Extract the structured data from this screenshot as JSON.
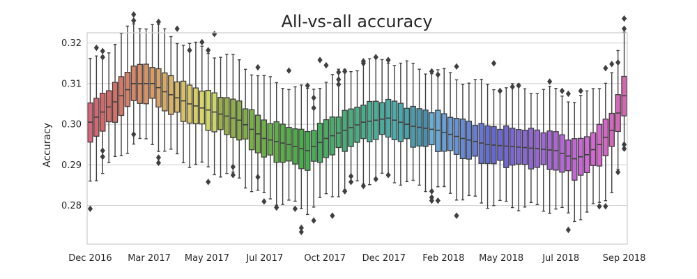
{
  "chart_data": {
    "type": "box",
    "title": "All-vs-all accuracy",
    "xlabel": "",
    "ylabel": "Accuracy",
    "ylim": [
      0.2705,
      0.3225
    ],
    "yticks": [
      0.28,
      0.29,
      0.3,
      0.31,
      0.32
    ],
    "ytick_labels": [
      "0.28",
      "0.29",
      "0.30",
      "0.31",
      "0.32"
    ],
    "xtick_labels": [
      "Dec 2016",
      "Mar 2017",
      "May 2017",
      "Jul 2017",
      "Oct 2017",
      "Dec 2017",
      "Feb 2018",
      "May 2018",
      "Jul 2018",
      "Sep 2018"
    ],
    "xtick_positions": [
      0,
      9.5,
      18.8,
      28.1,
      37.8,
      47.3,
      56.9,
      66.2,
      75.8,
      86
    ],
    "grid": true,
    "legend": "none",
    "median_color": "#3f3f3f",
    "n_boxes": 87,
    "median_anchors": [
      [
        0,
        0.3005
      ],
      [
        4,
        0.3055
      ],
      [
        7,
        0.31
      ],
      [
        10,
        0.31
      ],
      [
        12,
        0.308
      ],
      [
        16,
        0.305
      ],
      [
        20,
        0.303
      ],
      [
        24,
        0.301
      ],
      [
        28,
        0.2965
      ],
      [
        32,
        0.295
      ],
      [
        35,
        0.2935
      ],
      [
        38,
        0.2965
      ],
      [
        41,
        0.2985
      ],
      [
        44,
        0.3005
      ],
      [
        48,
        0.3015
      ],
      [
        52,
        0.2995
      ],
      [
        56,
        0.2985
      ],
      [
        60,
        0.2965
      ],
      [
        64,
        0.295
      ],
      [
        68,
        0.2945
      ],
      [
        72,
        0.294
      ],
      [
        75,
        0.2935
      ],
      [
        78,
        0.2915
      ],
      [
        80,
        0.2925
      ],
      [
        82,
        0.295
      ],
      [
        84,
        0.2985
      ],
      [
        86,
        0.307
      ]
    ],
    "box_half_spread": 0.0045,
    "whisker_half_spread": 0.0145,
    "outlier_points": [
      [
        0,
        0.2792
      ],
      [
        1,
        0.3188
      ],
      [
        2,
        0.3165
      ],
      [
        2,
        0.318
      ],
      [
        2,
        0.2935
      ],
      [
        2,
        0.292
      ],
      [
        7,
        0.327
      ],
      [
        7,
        0.3255
      ],
      [
        7,
        0.2975
      ],
      [
        11,
        0.3252
      ],
      [
        11,
        0.2918
      ],
      [
        11,
        0.2905
      ],
      [
        14,
        0.3235
      ],
      [
        16,
        0.3182
      ],
      [
        18,
        0.3202
      ],
      [
        19,
        0.3182
      ],
      [
        19,
        0.2858
      ],
      [
        20,
        0.3222
      ],
      [
        23,
        0.2895
      ],
      [
        23,
        0.2875
      ],
      [
        27,
        0.314
      ],
      [
        27,
        0.287
      ],
      [
        28,
        0.281
      ],
      [
        30,
        0.2795
      ],
      [
        32,
        0.3132
      ],
      [
        33,
        0.2792
      ],
      [
        34,
        0.2745
      ],
      [
        34,
        0.2735
      ],
      [
        35,
        0.3095
      ],
      [
        36,
        0.3065
      ],
      [
        36,
        0.304
      ],
      [
        36,
        0.2763
      ],
      [
        37,
        0.3158
      ],
      [
        38,
        0.3145
      ],
      [
        39,
        0.2775
      ],
      [
        40,
        0.3128
      ],
      [
        40,
        0.311
      ],
      [
        40,
        0.3098
      ],
      [
        41,
        0.313
      ],
      [
        41,
        0.2835
      ],
      [
        42,
        0.2858
      ],
      [
        42,
        0.2872
      ],
      [
        44,
        0.3155
      ],
      [
        44,
        0.315
      ],
      [
        44,
        0.2848
      ],
      [
        46,
        0.3165
      ],
      [
        46,
        0.2865
      ],
      [
        48,
        0.2875
      ],
      [
        48,
        0.3158
      ],
      [
        55,
        0.313
      ],
      [
        55,
        0.2835
      ],
      [
        55,
        0.282
      ],
      [
        55,
        0.2812
      ],
      [
        56,
        0.2812
      ],
      [
        56,
        0.3122
      ],
      [
        59,
        0.2775
      ],
      [
        59,
        0.3142
      ],
      [
        65,
        0.315
      ],
      [
        66,
        0.3082
      ],
      [
        68,
        0.3092
      ],
      [
        69,
        0.3095
      ],
      [
        74,
        0.3105
      ],
      [
        76,
        0.3082
      ],
      [
        77,
        0.3075
      ],
      [
        77,
        0.274
      ],
      [
        79,
        0.3082
      ],
      [
        82,
        0.2798
      ],
      [
        83,
        0.3138
      ],
      [
        83,
        0.2798
      ],
      [
        84,
        0.3148
      ],
      [
        85,
        0.3152
      ],
      [
        85,
        0.2882
      ],
      [
        86,
        0.326
      ],
      [
        86,
        0.3235
      ],
      [
        86,
        0.295
      ],
      [
        86,
        0.294
      ]
    ]
  }
}
